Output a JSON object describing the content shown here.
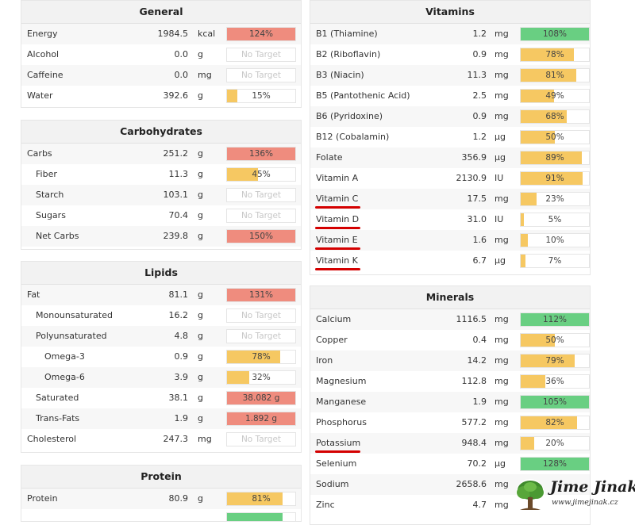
{
  "colors": {
    "red": "#ef8c7e",
    "yellow": "#f6c862",
    "green": "#69cf82",
    "underline": "#d40000"
  },
  "sections": {
    "general": {
      "title": "General",
      "rows": [
        {
          "name": "Energy",
          "amount": "1984.5",
          "unit": "kcal",
          "bar": "124%",
          "fill": 1.0,
          "color": "red",
          "indent": 0
        },
        {
          "name": "Alcohol",
          "amount": "0.0",
          "unit": "g",
          "bar": "No Target",
          "fill": 0,
          "color": "none",
          "indent": 0
        },
        {
          "name": "Caffeine",
          "amount": "0.0",
          "unit": "mg",
          "bar": "No Target",
          "fill": 0,
          "color": "none",
          "indent": 0
        },
        {
          "name": "Water",
          "amount": "392.6",
          "unit": "g",
          "bar": "15%",
          "fill": 0.15,
          "color": "yellow",
          "indent": 0
        }
      ]
    },
    "carbohydrates": {
      "title": "Carbohydrates",
      "rows": [
        {
          "name": "Carbs",
          "amount": "251.2",
          "unit": "g",
          "bar": "136%",
          "fill": 1.0,
          "color": "red",
          "indent": 0
        },
        {
          "name": "Fiber",
          "amount": "11.3",
          "unit": "g",
          "bar": "45%",
          "fill": 0.45,
          "color": "yellow",
          "indent": 1
        },
        {
          "name": "Starch",
          "amount": "103.1",
          "unit": "g",
          "bar": "No Target",
          "fill": 0,
          "color": "none",
          "indent": 1
        },
        {
          "name": "Sugars",
          "amount": "70.4",
          "unit": "g",
          "bar": "No Target",
          "fill": 0,
          "color": "none",
          "indent": 1
        },
        {
          "name": "Net Carbs",
          "amount": "239.8",
          "unit": "g",
          "bar": "150%",
          "fill": 1.0,
          "color": "red",
          "indent": 1
        }
      ]
    },
    "lipids": {
      "title": "Lipids",
      "rows": [
        {
          "name": "Fat",
          "amount": "81.1",
          "unit": "g",
          "bar": "131%",
          "fill": 1.0,
          "color": "red",
          "indent": 0
        },
        {
          "name": "Monounsaturated",
          "amount": "16.2",
          "unit": "g",
          "bar": "No Target",
          "fill": 0,
          "color": "none",
          "indent": 1
        },
        {
          "name": "Polyunsaturated",
          "amount": "4.8",
          "unit": "g",
          "bar": "No Target",
          "fill": 0,
          "color": "none",
          "indent": 1
        },
        {
          "name": "Omega-3",
          "amount": "0.9",
          "unit": "g",
          "bar": "78%",
          "fill": 0.78,
          "color": "yellow",
          "indent": 2
        },
        {
          "name": "Omega-6",
          "amount": "3.9",
          "unit": "g",
          "bar": "32%",
          "fill": 0.32,
          "color": "yellow",
          "indent": 2
        },
        {
          "name": "Saturated",
          "amount": "38.1",
          "unit": "g",
          "bar": "38.082 g",
          "fill": 1.0,
          "color": "red",
          "indent": 1
        },
        {
          "name": "Trans-Fats",
          "amount": "1.9",
          "unit": "g",
          "bar": "1.892 g",
          "fill": 1.0,
          "color": "red",
          "indent": 1
        },
        {
          "name": "Cholesterol",
          "amount": "247.3",
          "unit": "mg",
          "bar": "No Target",
          "fill": 0,
          "color": "none",
          "indent": 0
        }
      ]
    },
    "protein": {
      "title": "Protein",
      "rows": [
        {
          "name": "Protein",
          "amount": "80.9",
          "unit": "g",
          "bar": "81%",
          "fill": 0.81,
          "color": "yellow",
          "indent": 0
        },
        {
          "name": "",
          "amount": "",
          "unit": "",
          "bar": "",
          "fill": 0.81,
          "color": "green",
          "indent": 0
        }
      ]
    },
    "vitamins": {
      "title": "Vitamins",
      "rows": [
        {
          "name": "B1 (Thiamine)",
          "amount": "1.2",
          "unit": "mg",
          "bar": "108%",
          "fill": 1.0,
          "color": "green",
          "indent": 0,
          "underline": false
        },
        {
          "name": "B2 (Riboflavin)",
          "amount": "0.9",
          "unit": "mg",
          "bar": "78%",
          "fill": 0.78,
          "color": "yellow",
          "indent": 0,
          "underline": false
        },
        {
          "name": "B3 (Niacin)",
          "amount": "11.3",
          "unit": "mg",
          "bar": "81%",
          "fill": 0.81,
          "color": "yellow",
          "indent": 0,
          "underline": false
        },
        {
          "name": "B5 (Pantothenic Acid)",
          "amount": "2.5",
          "unit": "mg",
          "bar": "49%",
          "fill": 0.49,
          "color": "yellow",
          "indent": 0,
          "underline": false
        },
        {
          "name": "B6 (Pyridoxine)",
          "amount": "0.9",
          "unit": "mg",
          "bar": "68%",
          "fill": 0.68,
          "color": "yellow",
          "indent": 0,
          "underline": false
        },
        {
          "name": "B12 (Cobalamin)",
          "amount": "1.2",
          "unit": "µg",
          "bar": "50%",
          "fill": 0.5,
          "color": "yellow",
          "indent": 0,
          "underline": false
        },
        {
          "name": "Folate",
          "amount": "356.9",
          "unit": "µg",
          "bar": "89%",
          "fill": 0.89,
          "color": "yellow",
          "indent": 0,
          "underline": false
        },
        {
          "name": "Vitamin A",
          "amount": "2130.9",
          "unit": "IU",
          "bar": "91%",
          "fill": 0.91,
          "color": "yellow",
          "indent": 0,
          "underline": false
        },
        {
          "name": "Vitamin C",
          "amount": "17.5",
          "unit": "mg",
          "bar": "23%",
          "fill": 0.23,
          "color": "yellow",
          "indent": 0,
          "underline": true
        },
        {
          "name": "Vitamin D",
          "amount": "31.0",
          "unit": "IU",
          "bar": "5%",
          "fill": 0.05,
          "color": "yellow",
          "indent": 0,
          "underline": true
        },
        {
          "name": "Vitamin E",
          "amount": "1.6",
          "unit": "mg",
          "bar": "10%",
          "fill": 0.1,
          "color": "yellow",
          "indent": 0,
          "underline": true
        },
        {
          "name": "Vitamin K",
          "amount": "6.7",
          "unit": "µg",
          "bar": "7%",
          "fill": 0.07,
          "color": "yellow",
          "indent": 0,
          "underline": true
        }
      ]
    },
    "minerals": {
      "title": "Minerals",
      "rows": [
        {
          "name": "Calcium",
          "amount": "1116.5",
          "unit": "mg",
          "bar": "112%",
          "fill": 1.0,
          "color": "green",
          "indent": 0,
          "underline": false
        },
        {
          "name": "Copper",
          "amount": "0.4",
          "unit": "mg",
          "bar": "50%",
          "fill": 0.5,
          "color": "yellow",
          "indent": 0,
          "underline": false
        },
        {
          "name": "Iron",
          "amount": "14.2",
          "unit": "mg",
          "bar": "79%",
          "fill": 0.79,
          "color": "yellow",
          "indent": 0,
          "underline": false
        },
        {
          "name": "Magnesium",
          "amount": "112.8",
          "unit": "mg",
          "bar": "36%",
          "fill": 0.36,
          "color": "yellow",
          "indent": 0,
          "underline": false
        },
        {
          "name": "Manganese",
          "amount": "1.9",
          "unit": "mg",
          "bar": "105%",
          "fill": 1.0,
          "color": "green",
          "indent": 0,
          "underline": false
        },
        {
          "name": "Phosphorus",
          "amount": "577.2",
          "unit": "mg",
          "bar": "82%",
          "fill": 0.82,
          "color": "yellow",
          "indent": 0,
          "underline": false
        },
        {
          "name": "Potassium",
          "amount": "948.4",
          "unit": "mg",
          "bar": "20%",
          "fill": 0.2,
          "color": "yellow",
          "indent": 0,
          "underline": true
        },
        {
          "name": "Selenium",
          "amount": "70.2",
          "unit": "µg",
          "bar": "128%",
          "fill": 1.0,
          "color": "green",
          "indent": 0,
          "underline": false
        },
        {
          "name": "Sodium",
          "amount": "2658.6",
          "unit": "mg",
          "bar": "",
          "fill": 0,
          "color": "none",
          "indent": 0,
          "underline": false
        },
        {
          "name": "Zinc",
          "amount": "4.7",
          "unit": "mg",
          "bar": "",
          "fill": 0,
          "color": "none",
          "indent": 0,
          "underline": false
        }
      ]
    }
  },
  "watermark": {
    "title": "Jime Jinak",
    "url": "www.jimejinak.cz",
    "icon": "tree-icon"
  }
}
